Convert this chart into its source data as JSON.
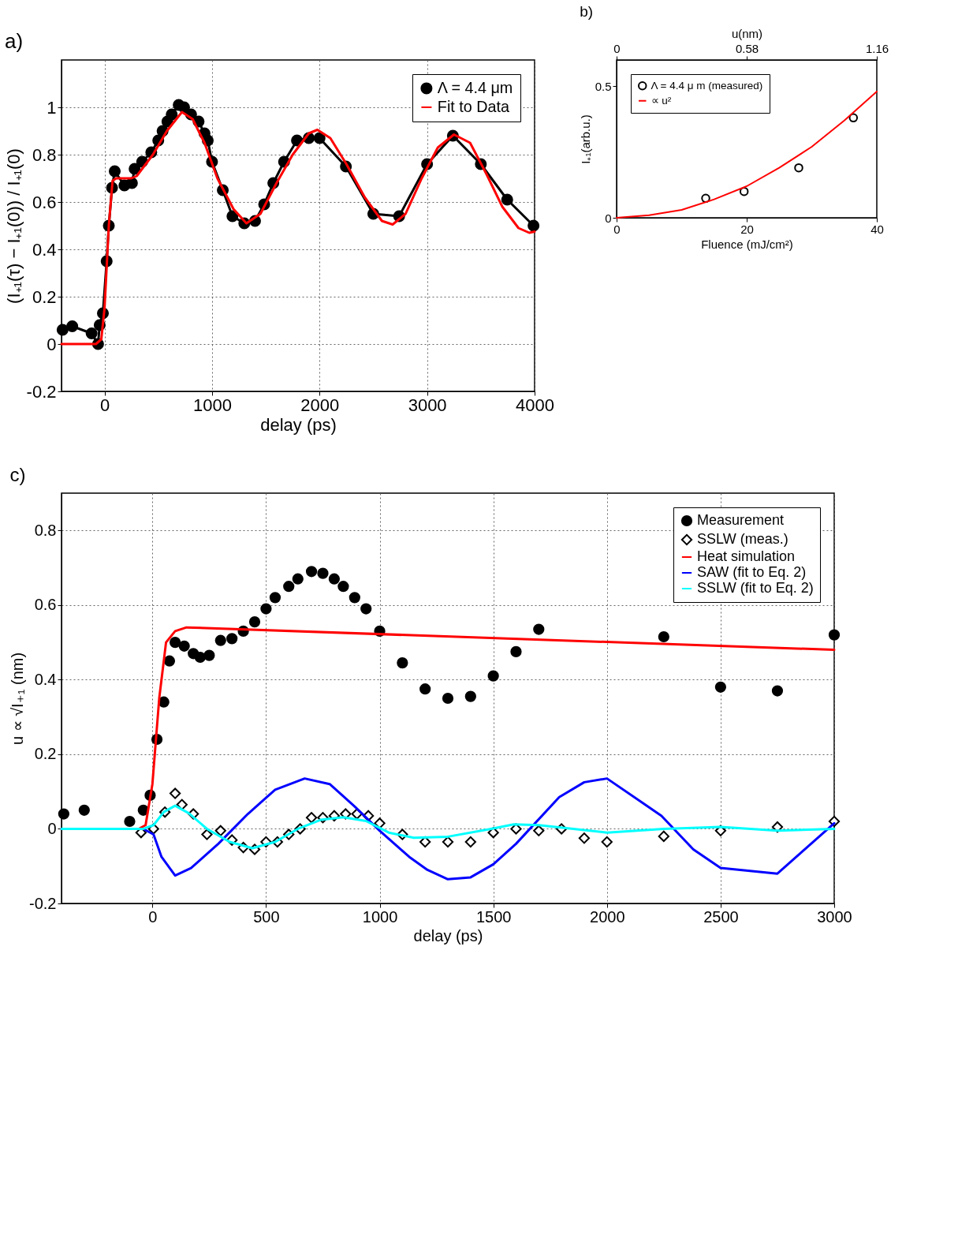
{
  "chart_data": [
    {
      "type": "line",
      "title": "a)",
      "xlabel": "delay (ps)",
      "ylabel": "(I₊₁(τ) − I₊₁(0)) / I₊₁(0)",
      "xlim": [
        -400,
        4000
      ],
      "xticks": [
        0,
        1000,
        2000,
        3000,
        4000
      ],
      "ylim": [
        -0.2,
        1.2
      ],
      "yticks": [
        -0.2,
        0,
        0.2,
        0.4,
        0.6,
        0.8,
        1
      ],
      "grid": true,
      "legend": "top right",
      "series": [
        {
          "name": "Λ = 4.4 μm",
          "type": "line",
          "marker": "circle",
          "color": "#000000",
          "x": [
            -390,
            -300,
            -120,
            -60,
            -45,
            -15,
            20,
            40,
            70,
            95,
            185,
            255,
            280,
            350,
            435,
            500,
            540,
            585,
            625,
            690,
            740,
            805,
            875,
            930,
            960,
            1000,
            1100,
            1190,
            1300,
            1400,
            1485,
            1570,
            1670,
            1790,
            1900,
            2000,
            2245,
            2500,
            2740,
            3000,
            3240,
            3500,
            3745,
            3990
          ],
          "values": [
            0.06,
            0.075,
            0.045,
            0,
            0.08,
            0.13,
            0.35,
            0.5,
            0.66,
            0.73,
            0.67,
            0.68,
            0.74,
            0.77,
            0.81,
            0.86,
            0.9,
            0.94,
            0.97,
            1.01,
            1,
            0.97,
            0.94,
            0.89,
            0.86,
            0.77,
            0.65,
            0.54,
            0.51,
            0.52,
            0.59,
            0.68,
            0.77,
            0.86,
            0.87,
            0.87,
            0.75,
            0.55,
            0.54,
            0.76,
            0.88,
            0.76,
            0.61,
            0.5
          ]
        },
        {
          "name": "Fit to Data",
          "type": "line",
          "marker": "none",
          "color": "#ff0000",
          "x": [
            -400,
            -80,
            -30,
            0,
            40,
            75,
            110,
            250,
            300,
            450,
            580,
            720,
            820,
            930,
            1050,
            1200,
            1320,
            1450,
            1600,
            1750,
            1900,
            1980,
            2100,
            2250,
            2420,
            2580,
            2680,
            2800,
            2950,
            3100,
            3250,
            3400,
            3550,
            3700,
            3850,
            3950,
            4000
          ],
          "values": [
            0,
            0,
            0.02,
            0.15,
            0.5,
            0.69,
            0.7,
            0.7,
            0.71,
            0.8,
            0.9,
            0.98,
            0.95,
            0.85,
            0.7,
            0.57,
            0.51,
            0.55,
            0.68,
            0.8,
            0.89,
            0.905,
            0.87,
            0.76,
            0.62,
            0.52,
            0.505,
            0.55,
            0.7,
            0.83,
            0.885,
            0.85,
            0.72,
            0.58,
            0.49,
            0.47,
            0.475
          ]
        }
      ]
    },
    {
      "type": "scatter",
      "title": "b)",
      "xlabel": "Fluence (mJ/cm²)",
      "ylabel": "I₊₁(arb.u.)",
      "x2label": "u(nm)",
      "xlim": [
        0,
        40
      ],
      "xticks": [
        0,
        20,
        40
      ],
      "x2lim": [
        0,
        1.16
      ],
      "x2ticks": [
        0,
        0.58,
        1.16
      ],
      "ylim": [
        0,
        0.6
      ],
      "yticks": [
        0,
        0.5
      ],
      "legend": "top left",
      "series": [
        {
          "name": "Λ = 4.4 μ m (measured)",
          "type": "scatter",
          "marker": "circle",
          "color": "#000000",
          "x": [
            13.7,
            19.6,
            28,
            36.4
          ],
          "values": [
            0.074,
            0.1,
            0.19,
            0.38
          ]
        },
        {
          "name": "∝ u²",
          "type": "line",
          "marker": "none",
          "color": "#ff0000",
          "x": [
            0,
            5,
            10,
            15,
            20,
            25,
            30,
            35,
            40
          ],
          "values": [
            0,
            0.01,
            0.03,
            0.07,
            0.12,
            0.19,
            0.27,
            0.37,
            0.48
          ]
        }
      ]
    },
    {
      "type": "line",
      "title": "c)",
      "xlabel": "delay (ps)",
      "ylabel": "u ∝ √I₊₁ (nm)",
      "xlim": [
        -400,
        3000
      ],
      "xticks": [
        0,
        500,
        1000,
        1500,
        2000,
        2500,
        3000
      ],
      "ylim": [
        -0.2,
        0.9
      ],
      "yticks": [
        -0.2,
        0,
        0.2,
        0.4,
        0.6,
        0.8
      ],
      "grid": true,
      "legend": "top right",
      "series": [
        {
          "name": "Measurement",
          "type": "scatter",
          "marker": "circle",
          "color": "#000000",
          "x": [
            -390,
            -300,
            -100,
            -40,
            -10,
            20,
            50,
            75,
            100,
            140,
            180,
            210,
            250,
            300,
            350,
            400,
            450,
            500,
            540,
            600,
            640,
            700,
            750,
            800,
            840,
            890,
            940,
            1000,
            1100,
            1200,
            1300,
            1400,
            1500,
            1600,
            1700,
            2250,
            2500,
            2750,
            3000
          ],
          "values": [
            0.04,
            0.05,
            0.02,
            0.05,
            0.09,
            0.24,
            0.34,
            0.45,
            0.5,
            0.49,
            0.47,
            0.46,
            0.465,
            0.505,
            0.51,
            0.53,
            0.555,
            0.59,
            0.62,
            0.65,
            0.67,
            0.69,
            0.685,
            0.67,
            0.65,
            0.62,
            0.59,
            0.53,
            0.445,
            0.375,
            0.35,
            0.355,
            0.41,
            0.475,
            0.535,
            0.515,
            0.38,
            0.37,
            0.52
          ]
        },
        {
          "name": "SSLW (meas.)",
          "type": "scatter",
          "marker": "diamond",
          "color": "#000000",
          "x": [
            -50,
            5,
            55,
            100,
            130,
            180,
            240,
            300,
            350,
            400,
            450,
            500,
            550,
            600,
            650,
            700,
            750,
            800,
            850,
            900,
            950,
            1000,
            1100,
            1200,
            1300,
            1400,
            1500,
            1600,
            1700,
            1800,
            1900,
            2000,
            2250,
            2500,
            2750,
            3000
          ],
          "values": [
            -0.01,
            0,
            0.045,
            0.095,
            0.065,
            0.04,
            -0.015,
            -0.005,
            -0.03,
            -0.05,
            -0.055,
            -0.035,
            -0.035,
            -0.015,
            0,
            0.03,
            0.03,
            0.035,
            0.04,
            0.04,
            0.035,
            0.015,
            -0.015,
            -0.035,
            -0.035,
            -0.035,
            -0.01,
            0,
            -0.005,
            0,
            -0.025,
            -0.035,
            -0.02,
            -0.005,
            0.005,
            0.02
          ]
        },
        {
          "name": "Heat simulation",
          "type": "line",
          "marker": "none",
          "color": "#ff0000",
          "x": [
            -400,
            -60,
            -30,
            0,
            30,
            60,
            100,
            150,
            3000
          ],
          "values": [
            0,
            0,
            0.01,
            0.12,
            0.35,
            0.5,
            0.53,
            0.54,
            0.48
          ]
        },
        {
          "name": "SAW (fit to Eq. 2)",
          "type": "line",
          "marker": "none",
          "color": "#0000ff",
          "x": [
            -400,
            -40,
            5,
            40,
            100,
            170,
            290,
            420,
            540,
            670,
            780,
            890,
            1000,
            1130,
            1210,
            1300,
            1400,
            1500,
            1600,
            1790,
            1900,
            2000,
            2240,
            2380,
            2500,
            2750,
            3000
          ],
          "values": [
            0,
            0,
            -0.015,
            -0.075,
            -0.125,
            -0.105,
            -0.04,
            0.04,
            0.105,
            0.135,
            0.12,
            0.06,
            -0.005,
            -0.075,
            -0.11,
            -0.135,
            -0.13,
            -0.095,
            -0.04,
            0.085,
            0.125,
            0.135,
            0.035,
            -0.055,
            -0.105,
            -0.12,
            0.015
          ]
        },
        {
          "name": "SSLW (fit to Eq. 2)",
          "type": "line",
          "marker": "none",
          "color": "#00ffff",
          "x": [
            -400,
            -40,
            5,
            50,
            100,
            160,
            240,
            340,
            440,
            540,
            640,
            740,
            840,
            940,
            1040,
            1150,
            1300,
            1490,
            1590,
            1700,
            2000,
            2250,
            2500,
            2750,
            3000
          ],
          "values": [
            0,
            0,
            0.01,
            0.045,
            0.062,
            0.042,
            0,
            -0.035,
            -0.052,
            -0.035,
            0,
            0.024,
            0.031,
            0.021,
            -0.01,
            -0.024,
            -0.021,
            0,
            0.012,
            0.01,
            -0.01,
            0,
            0.005,
            -0.005,
            0
          ]
        }
      ]
    }
  ]
}
